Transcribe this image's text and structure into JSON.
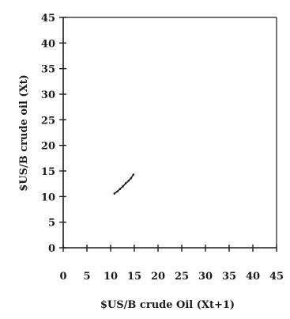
{
  "chart_data": {
    "type": "scatter",
    "title": "",
    "xlabel": "$US/B crude Oil (Xt+1)",
    "ylabel": "$US/B crude oil (Xt)",
    "xlim": [
      0,
      45
    ],
    "ylim": [
      0,
      45
    ],
    "x_ticks": [
      0,
      5,
      10,
      15,
      20,
      25,
      30,
      35,
      40,
      45
    ],
    "y_ticks": [
      0,
      5,
      10,
      15,
      20,
      25,
      30,
      35,
      40,
      45
    ],
    "grid": false,
    "legend": "none",
    "series": [
      {
        "points": [
          {
            "x": 10.8,
            "y": 10.6
          },
          {
            "x": 11.4,
            "y": 11.0
          },
          {
            "x": 12.0,
            "y": 11.5
          },
          {
            "x": 12.6,
            "y": 12.0
          },
          {
            "x": 13.2,
            "y": 12.6
          },
          {
            "x": 13.8,
            "y": 13.1
          },
          {
            "x": 14.3,
            "y": 13.6
          },
          {
            "x": 14.8,
            "y": 14.3
          }
        ]
      }
    ]
  }
}
